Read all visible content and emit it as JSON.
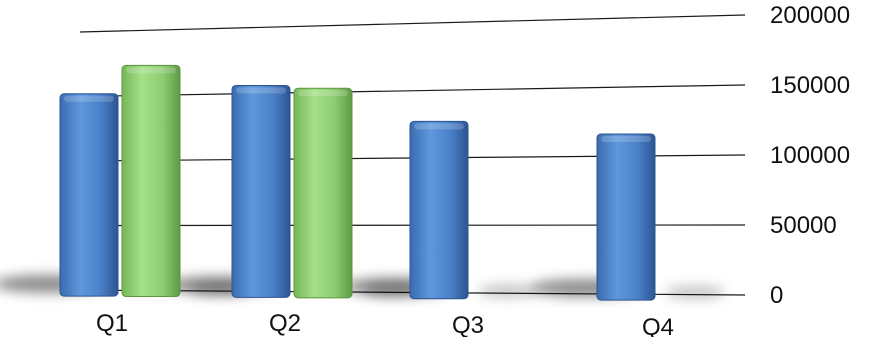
{
  "chart_data": {
    "type": "bar",
    "title": "",
    "xlabel": "",
    "ylabel": "",
    "categories": [
      "Q1",
      "Q2",
      "Q3",
      "Q4"
    ],
    "series": [
      {
        "values": [
          152000,
          156000,
          127000,
          116000
        ],
        "color": "#4a7fc4"
      },
      {
        "values": [
          173000,
          153000,
          null,
          null
        ],
        "color": "#86c96a"
      }
    ],
    "ylim": [
      0,
      200000
    ],
    "yticks": [
      "0",
      "50000",
      "100000",
      "150000",
      "200000"
    ],
    "grid": true,
    "legend": "none",
    "style": "3d-perspective"
  }
}
